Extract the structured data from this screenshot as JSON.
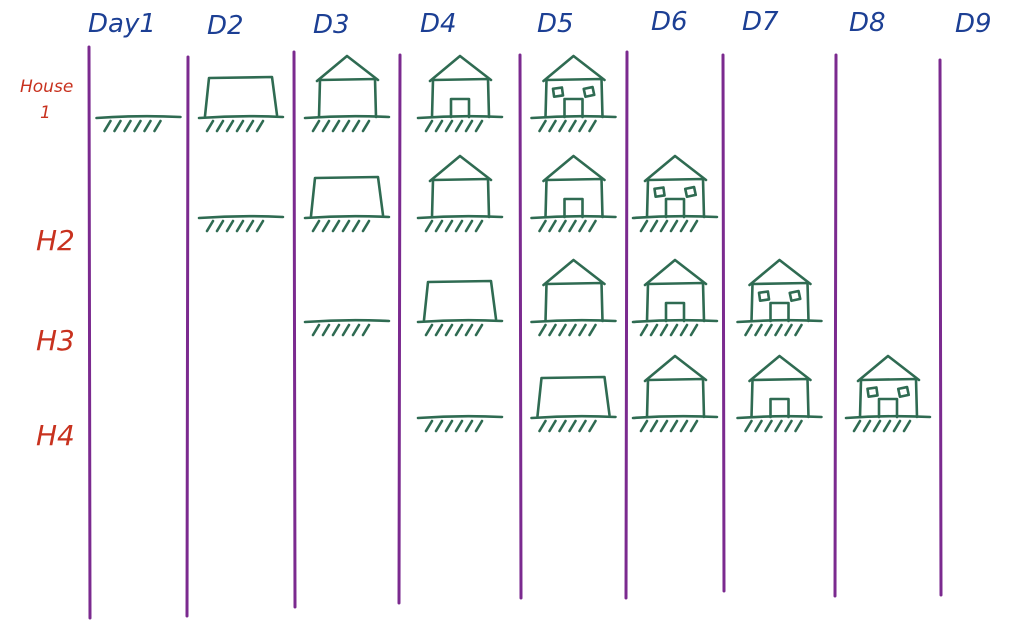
{
  "columns": [
    "Day1",
    "D2",
    "D3",
    "D4",
    "D5",
    "D6",
    "D7",
    "D8",
    "D9"
  ],
  "rows": [
    {
      "label": "House 1"
    },
    {
      "label": "H2"
    },
    {
      "label": "H3"
    },
    {
      "label": "H4"
    }
  ],
  "stages": [
    "ground",
    "walls",
    "roof",
    "door",
    "windows"
  ],
  "schedule": [
    {
      "row": 0,
      "col": 0,
      "stage": "ground"
    },
    {
      "row": 0,
      "col": 1,
      "stage": "walls"
    },
    {
      "row": 0,
      "col": 2,
      "stage": "roof"
    },
    {
      "row": 0,
      "col": 3,
      "stage": "door"
    },
    {
      "row": 0,
      "col": 4,
      "stage": "windows"
    },
    {
      "row": 1,
      "col": 1,
      "stage": "ground"
    },
    {
      "row": 1,
      "col": 2,
      "stage": "walls"
    },
    {
      "row": 1,
      "col": 3,
      "stage": "roof"
    },
    {
      "row": 1,
      "col": 4,
      "stage": "door"
    },
    {
      "row": 1,
      "col": 5,
      "stage": "windows"
    },
    {
      "row": 2,
      "col": 2,
      "stage": "ground"
    },
    {
      "row": 2,
      "col": 3,
      "stage": "walls"
    },
    {
      "row": 2,
      "col": 4,
      "stage": "roof"
    },
    {
      "row": 2,
      "col": 5,
      "stage": "door"
    },
    {
      "row": 2,
      "col": 6,
      "stage": "windows"
    },
    {
      "row": 3,
      "col": 3,
      "stage": "ground"
    },
    {
      "row": 3,
      "col": 4,
      "stage": "walls"
    },
    {
      "row": 3,
      "col": 5,
      "stage": "roof"
    },
    {
      "row": 3,
      "col": 6,
      "stage": "door"
    },
    {
      "row": 3,
      "col": 7,
      "stage": "windows"
    }
  ],
  "colors": {
    "day_label": "#1c3f94",
    "row_label": "#c8321f",
    "divider": "#7b2a8f",
    "house_ink": "#2f6b52"
  }
}
